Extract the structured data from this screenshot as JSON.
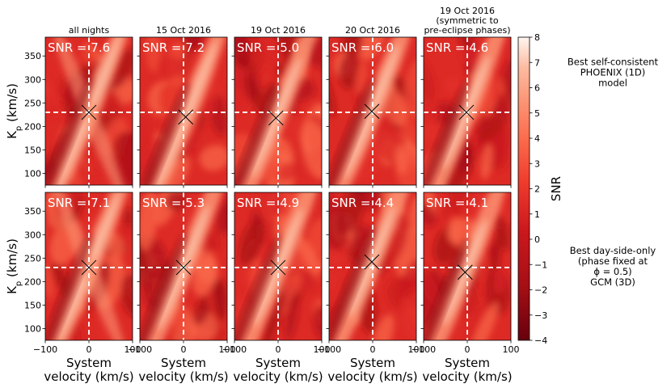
{
  "chart_data": {
    "type": "heatmap",
    "columns": [
      {
        "title": "all nights"
      },
      {
        "title": "15 Oct 2016"
      },
      {
        "title": "19 Oct 2016"
      },
      {
        "title": "20 Oct 2016"
      },
      {
        "title": "19 Oct 2016 (symmetric to pre-eclipse phases)",
        "title_lines": [
          "19 Oct 2016",
          "(symmetric to",
          "pre-eclipse phases)"
        ]
      }
    ],
    "rows": [
      {
        "label_lines": [
          "Best self-consistent",
          "PHOENIX (1D)",
          "model"
        ],
        "snr_labels": [
          "SNR = 7.6",
          "SNR = 7.2",
          "SNR = 5.0",
          "SNR = 6.0",
          "SNR = 4.6"
        ],
        "peaks": [
          {
            "vsys": 0,
            "kp": 230
          },
          {
            "vsys": 5,
            "kp": 220
          },
          {
            "vsys": -5,
            "kp": 218
          },
          {
            "vsys": -2,
            "kp": 232
          },
          {
            "vsys": -2,
            "kp": 230
          }
        ],
        "max_snr": [
          7.6,
          7.2,
          5.0,
          6.0,
          4.6
        ]
      },
      {
        "label_lines": [
          "Best day-side-only",
          "(phase fixed at",
          "ϕ = 0.5)",
          "GCM (3D)"
        ],
        "snr_labels": [
          "SNR = 7.1",
          "SNR = 5.3",
          "SNR = 4.9",
          "SNR = 4.4",
          "SNR = 4.1"
        ],
        "peaks": [
          {
            "vsys": 0,
            "kp": 230
          },
          {
            "vsys": 0,
            "kp": 230
          },
          {
            "vsys": 0,
            "kp": 230
          },
          {
            "vsys": -2,
            "kp": 242
          },
          {
            "vsys": -5,
            "kp": 220
          }
        ],
        "max_snr": [
          7.1,
          5.3,
          4.9,
          4.4,
          4.1
        ]
      }
    ],
    "dashed_crosshair": {
      "vsys": 0,
      "kp": 230
    },
    "x_axis": {
      "label_lines": [
        "System",
        "velocity (km/s)"
      ],
      "range": [
        -100,
        100
      ],
      "ticks": [
        -100,
        0,
        100
      ]
    },
    "y_axis": {
      "label": "K",
      "label_subscript": "p",
      "label_suffix": " (km/s)",
      "range": [
        75,
        390
      ],
      "ticks": [
        100,
        150,
        200,
        250,
        300,
        350
      ]
    },
    "colorbar": {
      "label": "SNR",
      "range": [
        -4,
        8
      ],
      "ticks": [
        -4,
        -3,
        -2,
        -1,
        0,
        1,
        2,
        3,
        4,
        5,
        6,
        7,
        8
      ],
      "cmap": "Reds_r"
    }
  }
}
